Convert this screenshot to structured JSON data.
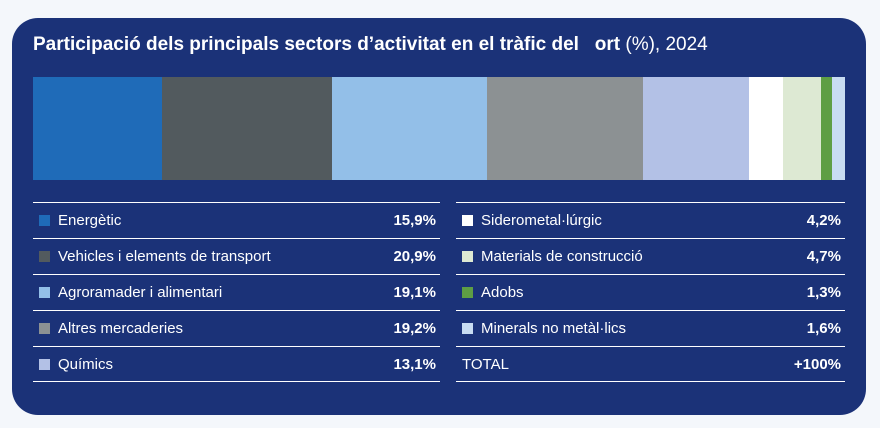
{
  "chart_data": {
    "type": "bar",
    "stacked": true,
    "title": "Participació dels principals sectors d’activitat en el tràfic del   ort",
    "title_suffix": "(%), 2024",
    "categories": [
      "Energètic",
      "Vehicles i elements de transport",
      "Agroramader i alimentari",
      "Altres mercaderies",
      "Químics",
      "Siderometal·lúrgic",
      "Materials de construcció",
      "Adobs",
      "Minerals no metàl·lics"
    ],
    "values": [
      15.9,
      20.9,
      19.1,
      19.2,
      13.1,
      4.2,
      4.7,
      1.3,
      1.6
    ],
    "value_labels": [
      "15,9%",
      "20,9%",
      "19,1%",
      "19,2%",
      "13,1%",
      "4,2%",
      "4,7%",
      "1,3%",
      "1,6%"
    ],
    "colors": [
      "#1f6bb8",
      "#525a5e",
      "#93bfe8",
      "#8c9193",
      "#b3c1e6",
      "#ffffff",
      "#dde9d3",
      "#5e9e44",
      "#c8dcf2"
    ],
    "total_label": "TOTAL",
    "total_value": "+100%"
  }
}
